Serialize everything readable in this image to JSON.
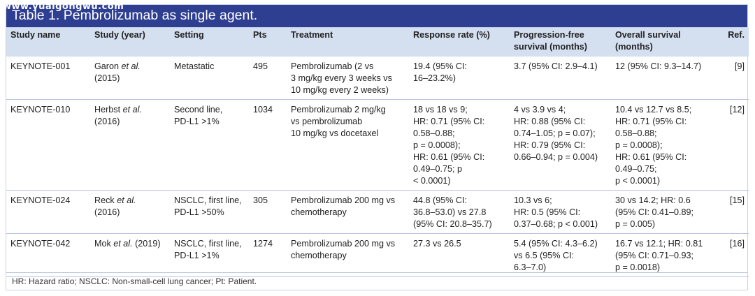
{
  "watermark": "www.yuaigongwu.com",
  "table_title": "Table 1.  Pembrolizumab as single agent.",
  "headers": {
    "study_name": "Study name",
    "study_year": "Study (year)",
    "setting": "Setting",
    "pts": "Pts",
    "treatment": "Treatment",
    "response": "Response rate (%)",
    "pfs_1": "Progression-free",
    "pfs_2": "survival (months)",
    "os_1": "Overall survival",
    "os_2": "(months)",
    "ref": "Ref."
  },
  "rows": [
    {
      "study_name": "KEYNOTE-001",
      "author": "Garon",
      "etal": "et al.",
      "year": "(2015)",
      "setting": [
        "Metastatic"
      ],
      "pts": "495",
      "treatment": [
        "Pembrolizumab (2 vs",
        "3 mg/kg every 3 weeks vs",
        "10 mg/kg every 2 weeks)"
      ],
      "response": [
        "19.4 (95% CI:",
        "16–23.2%)"
      ],
      "pfs": [
        "3.7 (95% CI: 2.9–4.1)"
      ],
      "os": [
        "12 (95% CI: 9.3–14.7)"
      ],
      "ref": "[9]"
    },
    {
      "study_name": "KEYNOTE-010",
      "author": "Herbst",
      "etal": "et al.",
      "year": "(2016)",
      "setting": [
        "Second line,",
        "PD-L1 >1%"
      ],
      "pts": "1034",
      "treatment": [
        "Pembrolizumab 2 mg/kg",
        "vs pembrolizumab",
        "10 mg/kg vs docetaxel"
      ],
      "response": [
        "18 vs 18 vs 9;",
        "HR: 0.71 (95% CI:",
        "0.58–0.88;",
        "p = 0.0008);",
        "HR: 0.61 (95% CI:",
        "0.49–0.75; p",
        "< 0.0001)"
      ],
      "pfs": [
        "4 vs 3.9 vs 4;",
        "HR: 0.88 (95% CI:",
        "0.74–1.05; p = 0.07);",
        "HR: 0.79 (95% CI:",
        "0.66–0.94; p = 0.004)"
      ],
      "os": [
        "10.4 vs 12.7 vs 8.5;",
        "HR: 0.71 (95% CI:",
        "0.58–0.88;",
        "p = 0.0008);",
        "HR: 0.61 (95% CI:",
        "0.49–0.75;",
        "p < 0.0001)"
      ],
      "ref": "[12]"
    },
    {
      "study_name": "KEYNOTE-024",
      "author": "Reck",
      "etal": "et al.",
      "year": "(2016)",
      "setting": [
        "NSCLC, first line,",
        "PD-L1 >50%"
      ],
      "pts": "305",
      "treatment": [
        "Pembrolizumab 200 mg vs",
        "chemotherapy"
      ],
      "response": [
        "44.8 (95% CI:",
        "36.8–53.0) vs 27.8",
        "(95% CI: 20.8–35.7)"
      ],
      "pfs": [
        "10.3 vs 6;",
        "HR: 0.5 (95% CI:",
        "0.37–0.68; p < 0.001)"
      ],
      "os": [
        "30 vs 14.2; HR: 0.6",
        "(95% CI: 0.41–0.89;",
        "p = 0.005)"
      ],
      "ref": "[15]"
    },
    {
      "study_name": "KEYNOTE-042",
      "author": "Mok",
      "etal": "et al.",
      "year": "(2019)",
      "setting": [
        "NSCLC, first line,",
        "PD-L1 >1%"
      ],
      "pts": "1274",
      "treatment": [
        "Pembrolizumab 200 mg vs",
        "chemotherapy"
      ],
      "response": [
        "27.3 vs 26.5"
      ],
      "pfs": [
        "5.4 (95% CI: 4.3–6.2)",
        "vs 6.5 (95% CI:",
        "6.3–7.0)"
      ],
      "os": [
        "16.7 vs 12.1; HR: 0.81",
        "(95% CI: 0.71–0.93;",
        "p = 0.0018)"
      ],
      "ref": "[16]"
    }
  ],
  "footnote": "HR: Hazard ratio; NSCLC: Non-small-cell lung cancer; Pt: Patient."
}
